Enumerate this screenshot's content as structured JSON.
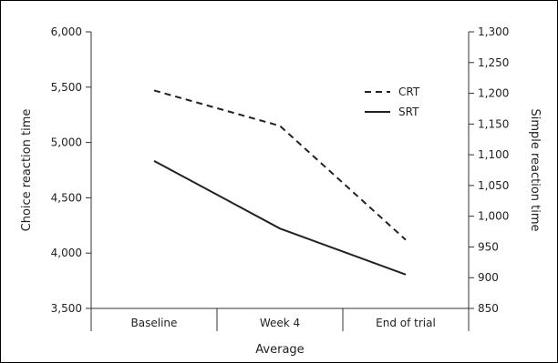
{
  "chart_data": {
    "type": "line",
    "categories": [
      "Baseline",
      "Week 4",
      "End of trial"
    ],
    "xlabel": "Average",
    "ylabel_left": "Choice reaction time",
    "ylabel_right": "Simple reaction time",
    "ylim_left": [
      3500,
      6000
    ],
    "ylim_right": [
      850,
      1300
    ],
    "yticks_left": [
      3500,
      4000,
      4500,
      5000,
      5500,
      6000
    ],
    "yticks_left_labels": [
      "3,500",
      "4,000",
      "4,500",
      "5,000",
      "5,500",
      "6,000"
    ],
    "yticks_right": [
      850,
      900,
      950,
      1000,
      1050,
      1100,
      1150,
      1200,
      1250,
      1300
    ],
    "yticks_right_labels": [
      "850",
      "900",
      "950",
      "1,000",
      "1,050",
      "1,100",
      "1,150",
      "1,200",
      "1,250",
      "1,300"
    ],
    "grid": false,
    "legend_position": "top-right",
    "series": [
      {
        "name": "CRT",
        "axis": "left",
        "style": "dashed",
        "color": "#222222",
        "values": [
          5470,
          5150,
          4120
        ]
      },
      {
        "name": "SRT",
        "axis": "right",
        "style": "solid",
        "color": "#222222",
        "values": [
          1090,
          980,
          905
        ]
      }
    ]
  }
}
